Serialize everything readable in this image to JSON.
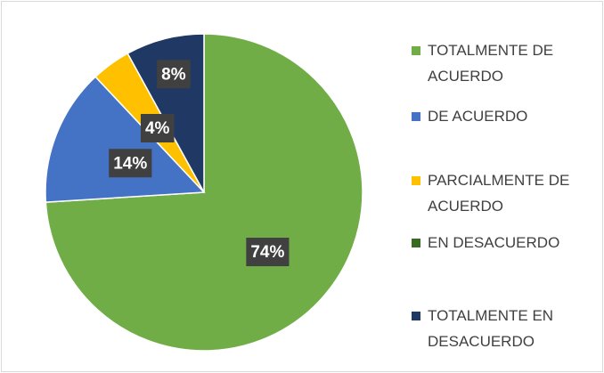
{
  "chart_data": {
    "type": "pie",
    "categories": [
      "TOTALMENTE DE ACUERDO",
      "DE ACUERDO",
      "PARCIALMENTE DE ACUERDO",
      "EN DESACUERDO",
      "TOTALMENTE EN DESACUERDO"
    ],
    "values": [
      74,
      14,
      4,
      0,
      8
    ],
    "value_labels": [
      "74%",
      "14%",
      "4%",
      null,
      "8%"
    ],
    "colors": [
      "#70ad47",
      "#4472c4",
      "#ffc000",
      "#3a6b24",
      "#203864"
    ],
    "legend": "right"
  }
}
